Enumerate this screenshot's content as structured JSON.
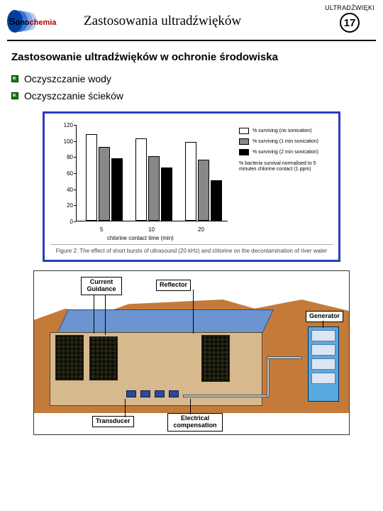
{
  "header": {
    "logo_prefix": "S",
    "logo_mid": "ono",
    "logo_suffix": "chemia",
    "title": "Zastosowania ultradźwięków",
    "top_right": "ULTRADŹWIĘKI",
    "page_number": "17"
  },
  "section_title": "Zastosowanie ultradźwięków w ochronie środowiska",
  "bullets": [
    "Oczyszczanie wody",
    "Oczyszczanie ścieków"
  ],
  "chart1": {
    "type": "bar",
    "border_color": "#2b3fb5",
    "ylabel_ticks": [
      0,
      20,
      40,
      60,
      80,
      100,
      120
    ],
    "ylim": [
      0,
      120
    ],
    "categories": [
      "5",
      "10",
      "20"
    ],
    "series": [
      {
        "name": "% surviving (no sonication)",
        "color": "#ffffff",
        "values": [
          108,
          102,
          98
        ]
      },
      {
        "name": "% surviving (1 min sonication)",
        "color": "#888888",
        "values": [
          92,
          80,
          76
        ]
      },
      {
        "name": "% surviving (2 min sonication)",
        "color": "#000000",
        "values": [
          78,
          66,
          50
        ]
      }
    ],
    "legend_note": "% bacteria survival normalised to 5 minutes chlorine contact (1 ppm)",
    "xlabel": "chlorine contact time (min)",
    "caption": "Figure 2. The effect of short bursts of ultrasound (20 kHz) and chlorine on the decontamination of river water"
  },
  "diagram2": {
    "type": "infographic",
    "terrain_color": "#c47b3a",
    "water_color": "#6b94d1",
    "wall_color": "#d7b98e",
    "rack_color": "#5aa8e0",
    "labels": {
      "current_guidance": "Current\nGuidance",
      "reflector": "Reflector",
      "generator": "Generator",
      "transducer": "Transducer",
      "electrical": "Electrical\ncompensation"
    }
  }
}
